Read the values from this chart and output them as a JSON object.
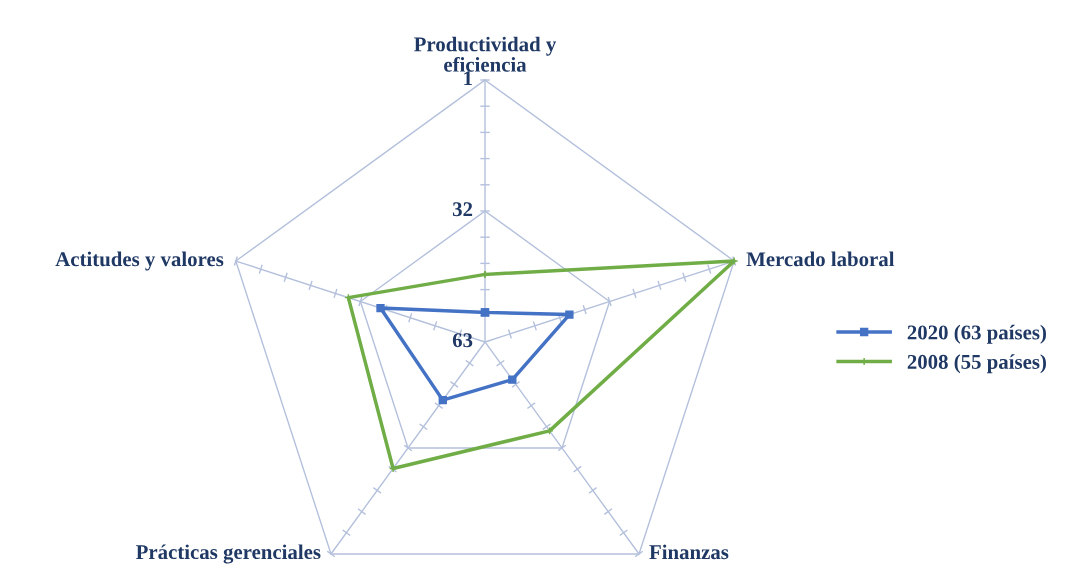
{
  "chart_data": {
    "type": "radar",
    "categories": [
      "Productividad y\neficiencia",
      "Mercado laboral",
      "Finanzas",
      "Prácticas gerenciales",
      "Actitudes y valores"
    ],
    "ylim": [
      63,
      1
    ],
    "yticks": [
      63,
      32,
      1
    ],
    "grid": true,
    "legend": "right",
    "series": [
      {
        "name": "2020 (63 países)",
        "color": "#4472c4",
        "marker": "square",
        "values": [
          56,
          42,
          52,
          46,
          37
        ]
      },
      {
        "name": "2008 (55 países)",
        "color": "#70ad47",
        "marker": "cross",
        "values": [
          47,
          1,
          37,
          26,
          29
        ]
      }
    ]
  }
}
